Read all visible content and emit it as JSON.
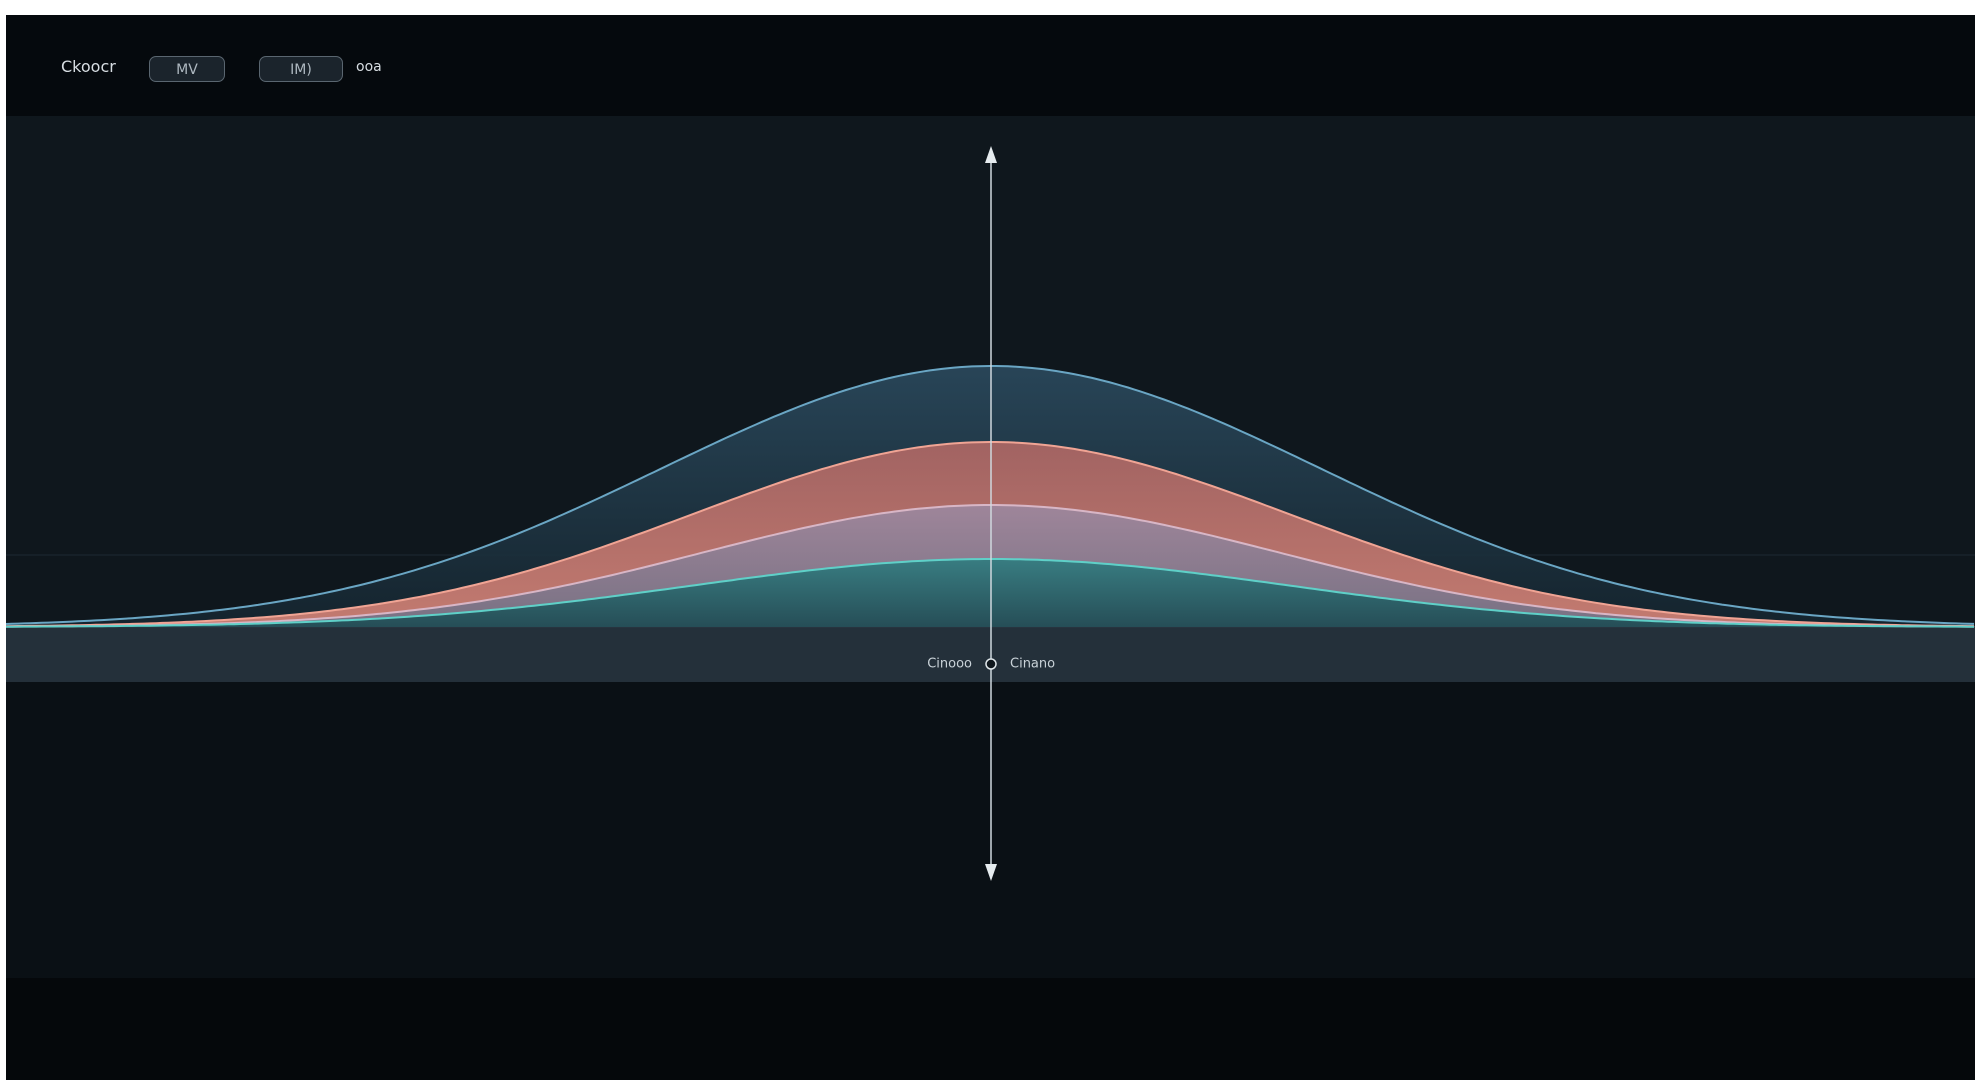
{
  "toolbar": {
    "title": "Ckoocr",
    "buttons": [
      "MV",
      "IM)"
    ],
    "trailing": "ooa"
  },
  "axis": {
    "labels": [
      "Cinooo",
      "Cinano"
    ]
  }
}
